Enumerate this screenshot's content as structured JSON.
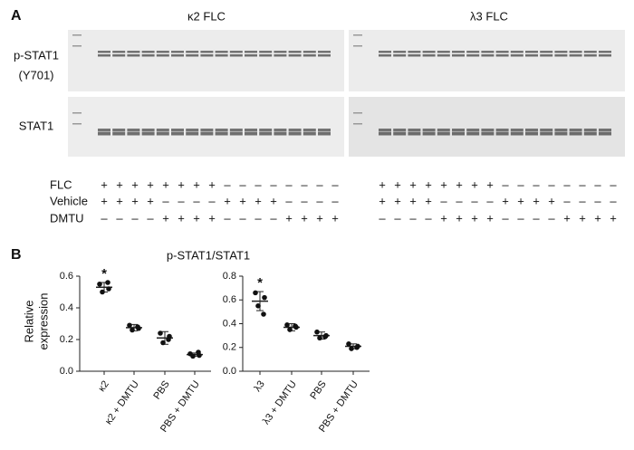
{
  "panel_a": {
    "label": "A",
    "titles": [
      "κ2 FLC",
      "λ3 FLC"
    ],
    "row_labels": {
      "pstat": [
        "p-STAT1",
        "(Y701)"
      ],
      "stat": "STAT1"
    },
    "conditions": [
      {
        "name": "FLC",
        "signs": [
          "+",
          "+",
          "+",
          "+",
          "+",
          "+",
          "+",
          "+",
          "–",
          "–",
          "–",
          "–",
          "–",
          "–",
          "–",
          "–"
        ]
      },
      {
        "name": "Vehicle",
        "signs": [
          "+",
          "+",
          "+",
          "+",
          "–",
          "–",
          "–",
          "–",
          "+",
          "+",
          "+",
          "+",
          "–",
          "–",
          "–",
          "–"
        ]
      },
      {
        "name": "DMTU",
        "signs": [
          "–",
          "–",
          "–",
          "–",
          "+",
          "+",
          "+",
          "+",
          "–",
          "–",
          "–",
          "–",
          "+",
          "+",
          "+",
          "+"
        ]
      }
    ]
  },
  "panel_b": {
    "label": "B",
    "title": "p-STAT1/STAT1",
    "y_label": [
      "Relative",
      "expression"
    ]
  },
  "chart_data": [
    {
      "type": "dot",
      "categories": [
        "κ2",
        "κ2 + DMTU",
        "PBS",
        "PBS + DMTU"
      ],
      "annotation": "*",
      "points": [
        [
          0.55,
          0.52,
          0.5,
          0.56
        ],
        [
          0.29,
          0.27,
          0.26,
          0.28
        ],
        [
          0.24,
          0.22,
          0.18,
          0.2
        ],
        [
          0.11,
          0.1,
          0.095,
          0.12
        ]
      ],
      "means": [
        0.53,
        0.275,
        0.21,
        0.105
      ],
      "sd": [
        0.03,
        0.02,
        0.04,
        0.01
      ],
      "ylim": [
        0,
        0.6
      ],
      "yticks": [
        {
          "value": 0,
          "label": "0.0"
        },
        0.2,
        0.4,
        0.6
      ]
    },
    {
      "type": "dot",
      "categories": [
        "λ3",
        "λ3 + DMTU",
        "PBS",
        "PBS + DMTU"
      ],
      "annotation": "*",
      "points": [
        [
          0.66,
          0.62,
          0.55,
          0.48
        ],
        [
          0.39,
          0.37,
          0.35,
          0.38
        ],
        [
          0.33,
          0.3,
          0.28,
          0.29
        ],
        [
          0.23,
          0.21,
          0.19,
          0.2
        ]
      ],
      "means": [
        0.59,
        0.37,
        0.3,
        0.21
      ],
      "sd": [
        0.08,
        0.03,
        0.03,
        0.02
      ],
      "ylim": [
        0,
        0.8
      ],
      "yticks": [
        {
          "value": 0,
          "label": "0.0"
        },
        0.2,
        0.4,
        0.6,
        0.8
      ]
    }
  ]
}
